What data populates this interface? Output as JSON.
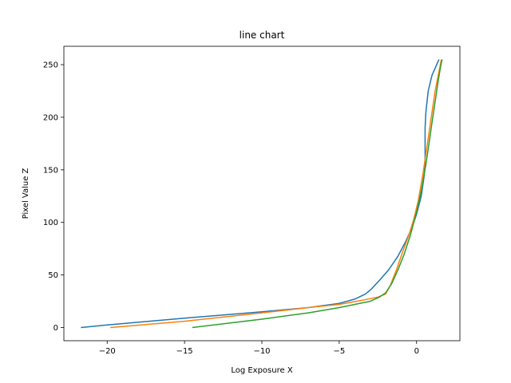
{
  "chart_data": {
    "type": "line",
    "title": "line chart",
    "xlabel": "Log Exposure X",
    "ylabel": "Pixel Value Z",
    "xlim": [
      -22.8,
      2.8
    ],
    "ylim": [
      -12.5,
      267.5
    ],
    "xticks": [
      -20,
      -15,
      -10,
      -5,
      0
    ],
    "yticks": [
      0,
      50,
      100,
      150,
      200,
      250
    ],
    "grid": false,
    "legend": "none",
    "series": [
      {
        "color": "#1f77b4",
        "points": [
          [
            -21.7,
            0
          ],
          [
            -20,
            2.5
          ],
          [
            -15,
            9
          ],
          [
            -10,
            15
          ],
          [
            -7,
            19
          ],
          [
            -5,
            23
          ],
          [
            -4,
            27
          ],
          [
            -3.3,
            32
          ],
          [
            -2.9,
            37
          ],
          [
            -2.4,
            45
          ],
          [
            -1.8,
            55
          ],
          [
            -1.2,
            68
          ],
          [
            -0.7,
            82
          ],
          [
            -0.3,
            95
          ],
          [
            0,
            108
          ],
          [
            0.3,
            125
          ],
          [
            0.5,
            145
          ],
          [
            0.55,
            160
          ],
          [
            0.55,
            175
          ],
          [
            0.55,
            190
          ],
          [
            0.6,
            205
          ],
          [
            0.75,
            225
          ],
          [
            1.0,
            240
          ],
          [
            1.3,
            250
          ],
          [
            1.45,
            255
          ]
        ]
      },
      {
        "color": "#ff7f0e",
        "points": [
          [
            -19.8,
            0
          ],
          [
            -15,
            6
          ],
          [
            -10,
            14
          ],
          [
            -7,
            19
          ],
          [
            -5,
            22
          ],
          [
            -3.5,
            26
          ],
          [
            -2.5,
            29
          ],
          [
            -2,
            32
          ],
          [
            -1.7,
            40
          ],
          [
            -1.3,
            55
          ],
          [
            -0.9,
            72
          ],
          [
            -0.5,
            88
          ],
          [
            -0.2,
            102
          ],
          [
            0.1,
            120
          ],
          [
            0.4,
            145
          ],
          [
            0.6,
            165
          ],
          [
            0.8,
            185
          ],
          [
            1.0,
            205
          ],
          [
            1.2,
            225
          ],
          [
            1.4,
            240
          ],
          [
            1.6,
            255
          ]
        ]
      },
      {
        "color": "#2ca02c",
        "points": [
          [
            -14.5,
            0
          ],
          [
            -10,
            8
          ],
          [
            -7,
            14
          ],
          [
            -5,
            19
          ],
          [
            -4,
            22
          ],
          [
            -3,
            25
          ],
          [
            -2.4,
            29
          ],
          [
            -2,
            33
          ],
          [
            -1.6,
            42
          ],
          [
            -1.2,
            55
          ],
          [
            -0.8,
            70
          ],
          [
            -0.4,
            88
          ],
          [
            0,
            110
          ],
          [
            0.3,
            130
          ],
          [
            0.6,
            155
          ],
          [
            0.8,
            175
          ],
          [
            1.0,
            195
          ],
          [
            1.2,
            215
          ],
          [
            1.4,
            235
          ],
          [
            1.55,
            248
          ],
          [
            1.65,
            255
          ]
        ]
      }
    ]
  }
}
